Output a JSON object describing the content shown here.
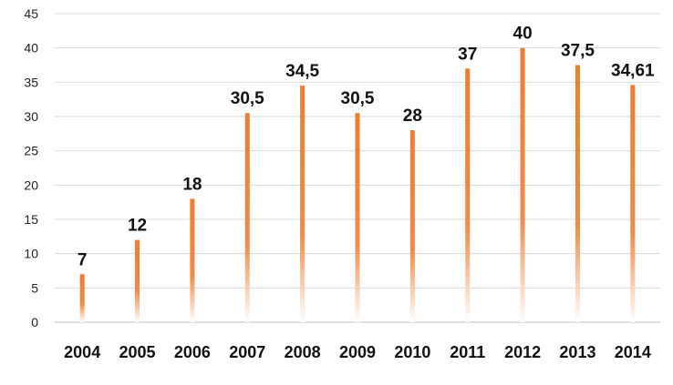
{
  "chart_data": {
    "type": "bar",
    "title": "",
    "xlabel": "",
    "ylabel": "",
    "categories": [
      "2004",
      "2005",
      "2006",
      "2007",
      "2008",
      "2009",
      "2010",
      "2011",
      "2012",
      "2013",
      "2014"
    ],
    "values": [
      7,
      12,
      18,
      30.5,
      34.5,
      30.5,
      28,
      37,
      40,
      37.5,
      34.61
    ],
    "data_labels": [
      "7",
      "12",
      "18",
      "30,5",
      "34,5",
      "30,5",
      "28",
      "37",
      "40",
      "37,5",
      "34,61"
    ],
    "ylim": [
      0,
      45
    ],
    "yticks": [
      0,
      5,
      10,
      15,
      20,
      25,
      30,
      35,
      40,
      45
    ],
    "grid": true,
    "legend": "none",
    "bar_color": "#ED7D31",
    "bar_style": "gradient-fade-to-white-at-base"
  }
}
